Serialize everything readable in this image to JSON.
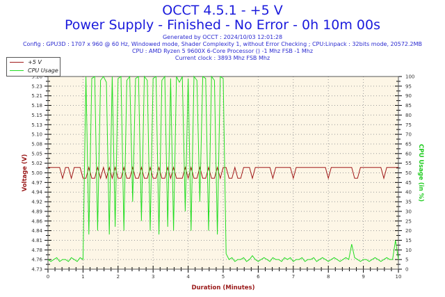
{
  "header": {
    "title": "OCCT 4.5.1 - +5 V",
    "subtitle": "Power Supply - Finished - No Error - 0h 10m 00s",
    "generated": "Generated by OCCT : 2024/10/03 12:01:28",
    "config": "Config : GPU3D : 1707 x 960 @ 60 Hz, Windowed mode, Shader Complexity 1, without Error Checking ; CPU:Linpack : 32bits mode, 20572.2MB",
    "cpu": "CPU : AMD Ryzen 5 9600X 6-Core Processor () -1 Mhz FSB -1 Mhz",
    "clock": "Current clock : 3893 Mhz FSB  Mhz"
  },
  "chart_data": {
    "type": "line",
    "xlabel": "Duration (Minutes)",
    "ylabel": "Voltage (V)",
    "y2label": "CPU Usage (in %)",
    "xlim": [
      0,
      10
    ],
    "ylim": [
      4.73,
      5.26
    ],
    "y2lim": [
      0,
      100
    ],
    "x_ticks": [
      "0",
      "1",
      "2",
      "3",
      "4",
      "5",
      "6",
      "7",
      "8",
      "9",
      "10"
    ],
    "y_ticks": [
      "4.73",
      "4.76",
      "4.78",
      "4.81",
      "4.84",
      "4.86",
      "4.89",
      "4.92",
      "4.94",
      "4.97",
      "5.00",
      "5.02",
      "5.05",
      "5.08",
      "5.10",
      "5.13",
      "5.15",
      "5.18",
      "5.21",
      "5.23",
      "5.26"
    ],
    "y2_ticks": [
      "0",
      "5",
      "10",
      "15",
      "20",
      "25",
      "30",
      "35",
      "40",
      "45",
      "50",
      "55",
      "60",
      "65",
      "70",
      "75",
      "80",
      "85",
      "90",
      "95",
      "100"
    ],
    "grid": true,
    "legend_position": "top-left",
    "x_step_minutes": 0.08333,
    "series": [
      {
        "name": "+5 V",
        "axis": "left",
        "color": "#a01818",
        "values": [
          5.01,
          5.01,
          5.01,
          5.01,
          5.01,
          4.98,
          5.01,
          5.01,
          4.98,
          5.01,
          5.01,
          5.01,
          4.98,
          4.98,
          5.01,
          4.98,
          4.98,
          5.01,
          4.98,
          5.01,
          4.98,
          5.01,
          4.98,
          5.01,
          4.98,
          4.98,
          5.01,
          4.98,
          4.98,
          5.01,
          4.98,
          4.98,
          5.01,
          4.98,
          4.98,
          5.01,
          4.98,
          4.98,
          5.01,
          4.98,
          4.98,
          5.01,
          4.98,
          5.01,
          4.98,
          4.98,
          4.98,
          5.01,
          4.98,
          5.01,
          4.98,
          4.98,
          5.01,
          4.98,
          4.98,
          5.01,
          4.98,
          4.98,
          5.01,
          4.98,
          5.01,
          5.01,
          4.98,
          4.98,
          5.01,
          4.98,
          4.98,
          5.01,
          5.01,
          5.01,
          4.98,
          5.01,
          5.01,
          5.01,
          5.01,
          5.01,
          5.01,
          4.98,
          5.01,
          5.01,
          5.01,
          5.01,
          5.01,
          5.01,
          4.98,
          5.01,
          5.01,
          5.01,
          5.01,
          5.01,
          5.01,
          5.01,
          5.01,
          5.01,
          5.01,
          5.01,
          4.98,
          5.01,
          5.01,
          5.01,
          5.01,
          5.01,
          5.01,
          5.01,
          5.01,
          4.98,
          4.98,
          5.01,
          5.01,
          5.01,
          5.01,
          5.01,
          5.01,
          5.01,
          5.01,
          4.98,
          5.01,
          5.01,
          5.01,
          5.01,
          5.01
        ]
      },
      {
        "name": "CPU Usage",
        "axis": "right",
        "color": "#22dd22",
        "values": [
          5,
          4,
          5,
          6,
          4,
          5,
          5,
          4,
          6,
          5,
          4,
          6,
          5,
          100,
          18,
          99,
          100,
          20,
          98,
          100,
          97,
          18,
          100,
          22,
          99,
          100,
          20,
          98,
          100,
          35,
          99,
          100,
          25,
          100,
          98,
          20,
          99,
          100,
          18,
          98,
          100,
          22,
          99,
          20,
          100,
          97,
          100,
          30,
          99,
          20,
          100,
          98,
          35,
          100,
          99,
          20,
          100,
          98,
          18,
          100,
          99,
          8,
          5,
          6,
          4,
          5,
          5,
          6,
          4,
          5,
          7,
          5,
          4,
          5,
          6,
          5,
          4,
          6,
          5,
          5,
          4,
          6,
          5,
          6,
          4,
          5,
          5,
          6,
          4,
          5,
          5,
          6,
          4,
          5,
          6,
          5,
          4,
          5,
          6,
          5,
          4,
          5,
          6,
          5,
          13,
          6,
          5,
          4,
          5,
          5,
          4,
          5,
          6,
          5,
          4,
          5,
          6,
          5,
          5,
          15,
          5
        ]
      }
    ]
  }
}
